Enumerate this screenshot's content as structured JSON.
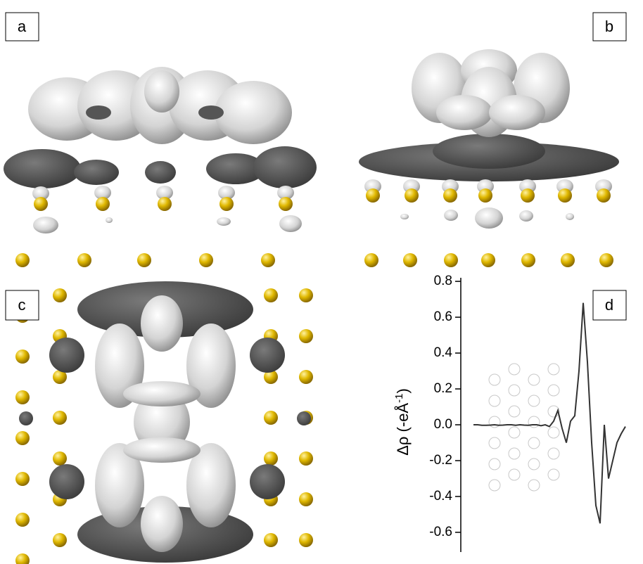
{
  "panels": {
    "a": "a",
    "b": "b",
    "c": "c",
    "d": "d"
  },
  "chart_data": {
    "type": "line",
    "y_label": {
      "main": "Δρ (-eÅ",
      "sup": "-1",
      "end": ")"
    },
    "values": [
      0,
      0,
      -0.003,
      -0.003,
      -0.002,
      0,
      -0.003,
      -0.002,
      0,
      0,
      -0.003,
      0,
      -0.002,
      -0.003,
      0,
      0,
      -0.005,
      0,
      -0.01,
      0.02,
      0.08,
      -0.02,
      -0.1,
      0.02,
      0.05,
      0.3,
      0.68,
      0.35,
      -0.1,
      -0.45,
      -0.55,
      0.0,
      -0.3,
      -0.2,
      -0.1,
      -0.05,
      -0.01
    ],
    "color": "#333333",
    "ylim": [
      -0.71,
      0.82
    ],
    "yticks": [
      0.8,
      0.6,
      0.4,
      0.2,
      {
        "value": 0,
        "label": "0.0"
      },
      -0.2,
      -0.4,
      -0.6
    ]
  }
}
